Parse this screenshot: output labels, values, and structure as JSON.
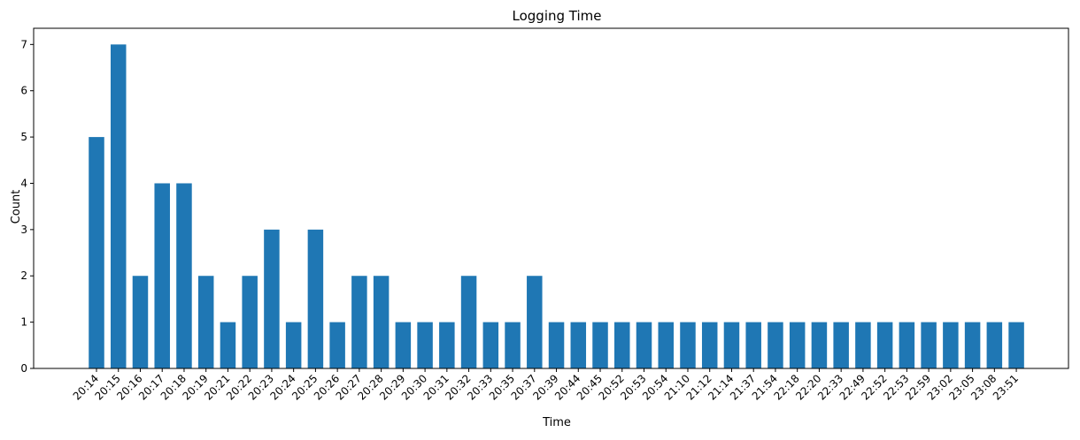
{
  "chart_data": {
    "type": "bar",
    "title": "Logging Time",
    "xlabel": "Time",
    "ylabel": "Count",
    "ylim": [
      0,
      7.35
    ],
    "yticks": [
      0,
      1,
      2,
      3,
      4,
      5,
      6,
      7
    ],
    "grid": false,
    "bar_color": "#1f77b4",
    "categories": [
      "20:14",
      "20:15",
      "20:16",
      "20:17",
      "20:18",
      "20:19",
      "20:21",
      "20:22",
      "20:23",
      "20:24",
      "20:25",
      "20:26",
      "20:27",
      "20:28",
      "20:29",
      "20:30",
      "20:31",
      "20:32",
      "20:33",
      "20:35",
      "20:37",
      "20:39",
      "20:44",
      "20:45",
      "20:52",
      "20:53",
      "20:54",
      "21:10",
      "21:12",
      "21:14",
      "21:37",
      "21:54",
      "22:18",
      "22:20",
      "22:33",
      "22:49",
      "22:52",
      "22:53",
      "22:59",
      "23:02",
      "23:05",
      "23:08",
      "23:51"
    ],
    "values": [
      5,
      7,
      2,
      4,
      4,
      2,
      1,
      2,
      3,
      1,
      3,
      1,
      2,
      2,
      1,
      1,
      1,
      2,
      1,
      1,
      2,
      1,
      1,
      1,
      1,
      1,
      1,
      1,
      1,
      1,
      1,
      1,
      1,
      1,
      1,
      1,
      1,
      1,
      1,
      1,
      1,
      1,
      1
    ]
  }
}
